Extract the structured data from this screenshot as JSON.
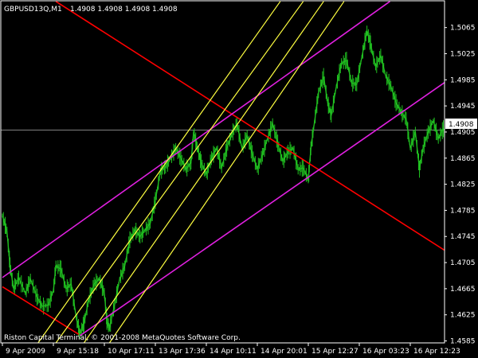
{
  "window": {
    "title": "GBPUSD13Q,M1",
    "ohlc": "1.4908 1.4908 1.4908 1.4908"
  },
  "footer": {
    "copyright": "Riston Capital Terminal, © 2001-2008 MetaQuotes Software Corp."
  },
  "colors": {
    "background": "#000000",
    "frame": "#ffffff",
    "price_line": "#20c020",
    "bid_line": "#808080",
    "red_line": "#ff0000",
    "magenta_line": "#e020e0",
    "yellow_line": "#ffff40"
  },
  "chart_data": {
    "type": "line",
    "symbol": "GBPUSD13Q",
    "timeframe": "M1",
    "current_price": "1.4908",
    "ylim": [
      1.4582,
      1.5106
    ],
    "y_ticks": [
      "1.5065",
      "1.5025",
      "1.4985",
      "1.4945",
      "1.4905",
      "1.4865",
      "1.4825",
      "1.4785",
      "1.4745",
      "1.4705",
      "1.4665",
      "1.4625",
      "1.4585"
    ],
    "y_tick_values": [
      1.5065,
      1.5025,
      1.4985,
      1.4945,
      1.4905,
      1.4865,
      1.4825,
      1.4785,
      1.4745,
      1.4705,
      1.4665,
      1.4625,
      1.4585
    ],
    "x_ticks": [
      "9 Apr 2009",
      "9 Apr 15:18",
      "10 Apr 17:11",
      "13 Apr 17:36",
      "14 Apr 10:11",
      "14 Apr 20:01",
      "15 Apr 12:27",
      "16 Apr 03:23",
      "16 Apr 12:23"
    ],
    "x_tick_index": [
      0,
      1,
      2,
      3,
      4,
      5,
      6,
      7,
      8
    ],
    "price_series": [
      [
        0,
        1.4777
      ],
      [
        0.09,
        1.4752
      ],
      [
        0.15,
        1.47
      ],
      [
        0.22,
        1.4665
      ],
      [
        0.32,
        1.4682
      ],
      [
        0.45,
        1.4658
      ],
      [
        0.55,
        1.468
      ],
      [
        0.68,
        1.4652
      ],
      [
        0.78,
        1.4638
      ],
      [
        0.9,
        1.464
      ],
      [
        1.0,
        1.4662
      ],
      [
        1.05,
        1.47
      ],
      [
        1.15,
        1.4695
      ],
      [
        1.25,
        1.4665
      ],
      [
        1.35,
        1.4672
      ],
      [
        1.45,
        1.462
      ],
      [
        1.52,
        1.4596
      ],
      [
        1.6,
        1.4612
      ],
      [
        1.7,
        1.465
      ],
      [
        1.8,
        1.4672
      ],
      [
        1.9,
        1.468
      ],
      [
        2.0,
        1.4658
      ],
      [
        2.05,
        1.4615
      ],
      [
        2.1,
        1.4605
      ],
      [
        2.2,
        1.464
      ],
      [
        2.3,
        1.468
      ],
      [
        2.4,
        1.47
      ],
      [
        2.5,
        1.474
      ],
      [
        2.6,
        1.4755
      ],
      [
        2.7,
        1.4745
      ],
      [
        2.8,
        1.4755
      ],
      [
        2.9,
        1.4765
      ],
      [
        3.0,
        1.48
      ],
      [
        3.1,
        1.4845
      ],
      [
        3.2,
        1.4852
      ],
      [
        3.3,
        1.4865
      ],
      [
        3.4,
        1.488
      ],
      [
        3.5,
        1.4865
      ],
      [
        3.6,
        1.4848
      ],
      [
        3.7,
        1.4858
      ],
      [
        3.75,
        1.4905
      ],
      [
        3.82,
        1.4882
      ],
      [
        3.9,
        1.4858
      ],
      [
        4.0,
        1.484
      ],
      [
        4.1,
        1.4865
      ],
      [
        4.2,
        1.488
      ],
      [
        4.3,
        1.485
      ],
      [
        4.4,
        1.488
      ],
      [
        4.5,
        1.4902
      ],
      [
        4.6,
        1.4918
      ],
      [
        4.7,
        1.488
      ],
      [
        4.8,
        1.49
      ],
      [
        4.9,
        1.4872
      ],
      [
        5.0,
        1.4848
      ],
      [
        5.1,
        1.487
      ],
      [
        5.2,
        1.4895
      ],
      [
        5.3,
        1.4918
      ],
      [
        5.4,
        1.4888
      ],
      [
        5.5,
        1.486
      ],
      [
        5.6,
        1.4875
      ],
      [
        5.7,
        1.488
      ],
      [
        5.8,
        1.4848
      ],
      [
        5.9,
        1.485
      ],
      [
        6.0,
        1.4832
      ],
      [
        6.05,
        1.488
      ],
      [
        6.12,
        1.492
      ],
      [
        6.2,
        1.4965
      ],
      [
        6.3,
        1.499
      ],
      [
        6.38,
        1.495
      ],
      [
        6.45,
        1.493
      ],
      [
        6.55,
        1.4975
      ],
      [
        6.65,
        1.501
      ],
      [
        6.75,
        1.5015
      ],
      [
        6.85,
        1.498
      ],
      [
        6.95,
        1.4978
      ],
      [
        7.05,
        1.502
      ],
      [
        7.15,
        1.506
      ],
      [
        7.22,
        1.504
      ],
      [
        7.32,
        1.5005
      ],
      [
        7.42,
        1.5022
      ],
      [
        7.52,
        1.499
      ],
      [
        7.62,
        1.4975
      ],
      [
        7.72,
        1.495
      ],
      [
        7.82,
        1.4935
      ],
      [
        7.92,
        1.4925
      ],
      [
        8.0,
        1.488
      ],
      [
        8.1,
        1.4905
      ],
      [
        8.18,
        1.4848
      ],
      [
        8.25,
        1.488
      ],
      [
        8.35,
        1.4905
      ],
      [
        8.45,
        1.4922
      ],
      [
        8.55,
        1.4895
      ],
      [
        8.65,
        1.491
      ],
      [
        8.75,
        1.49
      ]
    ],
    "trend_lines": [
      {
        "color": "red",
        "points": [
          [
            0.0,
            1.4668
          ],
          [
            1.5,
            1.4595
          ]
        ]
      },
      {
        "color": "red",
        "points": [
          [
            1.05,
            1.5105
          ],
          [
            8.75,
            1.472
          ]
        ]
      },
      {
        "color": "magenta",
        "points": [
          [
            0.0,
            1.4682
          ],
          [
            7.6,
            1.5105
          ]
        ]
      },
      {
        "color": "magenta",
        "points": [
          [
            1.52,
            1.4593
          ],
          [
            8.75,
            1.4985
          ]
        ]
      },
      {
        "color": "yellow",
        "points": [
          [
            0.7,
            1.4582
          ],
          [
            5.45,
            1.5105
          ]
        ]
      },
      {
        "color": "yellow",
        "points": [
          [
            1.05,
            1.4582
          ],
          [
            5.9,
            1.5105
          ]
        ]
      },
      {
        "color": "yellow",
        "points": [
          [
            1.6,
            1.4582
          ],
          [
            6.3,
            1.5105
          ]
        ]
      },
      {
        "color": "yellow",
        "points": [
          [
            2.1,
            1.4582
          ],
          [
            6.7,
            1.5105
          ]
        ]
      }
    ]
  }
}
